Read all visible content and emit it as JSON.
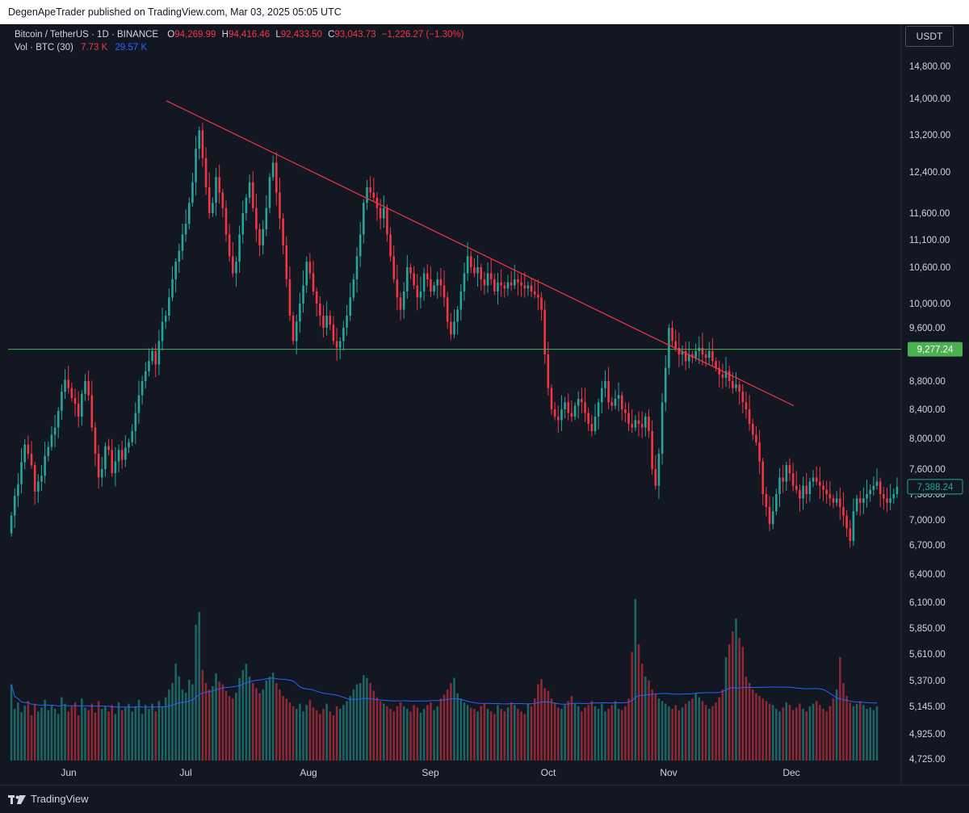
{
  "publish_bar": {
    "text": "DegenApeTrader published on TradingView.com, Mar 03, 2025 05:05 UTC"
  },
  "legend": {
    "symbol": "Bitcoin / TetherUS · 1D · BINANCE",
    "o_label": "O",
    "o_value": "94,269.99",
    "h_label": "H",
    "h_value": "94,416.46",
    "l_label": "L",
    "l_value": "92,433.50",
    "c_label": "C",
    "c_value": "93,043.73",
    "change": "−1,226.27 (−1.30%)",
    "vol_label": "Vol · BTC (30)",
    "vol_value": "7.73 K",
    "vol_ma": "29.57 K"
  },
  "currency_button": "USDT",
  "footer": {
    "brand": "TradingView"
  },
  "colors": {
    "up": "#26a69a",
    "down": "#f23645",
    "hline": "#4caf50",
    "trend": "#f23645",
    "vol_ma": "#2962ff",
    "bg": "#131722"
  },
  "chart_data": {
    "type": "candlestick",
    "price_axis_ticks": [
      "14,800.00",
      "14,000.00",
      "13,200.00",
      "12,400.00",
      "11,600.00",
      "11,100.00",
      "10,600.00",
      "10,000.00",
      "9,600.00",
      "8,800.00",
      "8,400.00",
      "8,000.00",
      "7,600.00",
      "7,300.00",
      "7,000.00",
      "6,700.00",
      "6,400.00",
      "6,100.00",
      "5,850.00",
      "5,610.00",
      "5,370.00",
      "5,145.00",
      "4,925.00",
      "4,725.00"
    ],
    "price_axis_values": [
      14800,
      14000,
      13200,
      12400,
      11600,
      11100,
      10600,
      10000,
      9600,
      8800,
      8400,
      8000,
      7600,
      7300,
      7000,
      6700,
      6400,
      6100,
      5850,
      5610,
      5370,
      5145,
      4925,
      4725
    ],
    "time_axis_labels": [
      "Jun",
      "Jul",
      "Aug",
      "Sep",
      "Oct",
      "Nov",
      "Dec"
    ],
    "horizontal_level": {
      "value": 9277.24,
      "label": "9,277.24"
    },
    "last_price": {
      "value": 7388.24,
      "label": "7,388.24"
    },
    "trendline": {
      "from_value": 13950,
      "to_value": 8450
    },
    "closes": [
      7050,
      7280,
      7420,
      7690,
      7920,
      7800,
      7650,
      7330,
      7450,
      7520,
      7770,
      7890,
      8050,
      8150,
      8380,
      8650,
      8820,
      8700,
      8560,
      8480,
      8300,
      8620,
      8800,
      8600,
      8150,
      7800,
      7500,
      7600,
      7900,
      7850,
      7550,
      7700,
      7850,
      7720,
      7880,
      7950,
      8100,
      8350,
      8600,
      8800,
      8950,
      9100,
      9250,
      9050,
      9400,
      9700,
      9800,
      10100,
      10400,
      10700,
      10900,
      11200,
      11400,
      11800,
      12200,
      12900,
      13300,
      12700,
      12100,
      11600,
      11800,
      12300,
      12000,
      11700,
      11200,
      10800,
      10500,
      10700,
      11200,
      11600,
      11900,
      12200,
      11700,
      11300,
      11000,
      11300,
      11700,
      12300,
      12600,
      12000,
      11500,
      11000,
      10400,
      9800,
      9400,
      9700,
      10000,
      10300,
      10700,
      10500,
      10200,
      10000,
      9800,
      9600,
      9800,
      9650,
      9400,
      9300,
      9400,
      9600,
      9800,
      10100,
      10400,
      10800,
      11200,
      11800,
      12100,
      12000,
      11900,
      11700,
      11500,
      11700,
      11200,
      10800,
      10400,
      10100,
      9900,
      10200,
      10600,
      10500,
      10300,
      10100,
      10200,
      10500,
      10400,
      10200,
      10300,
      10400,
      10300,
      10100,
      9700,
      9500,
      9700,
      9900,
      10200,
      10500,
      10800,
      10600,
      10500,
      10600,
      10400,
      10300,
      10500,
      10400,
      10200,
      10350,
      10300,
      10250,
      10350,
      10300,
      10400,
      10350,
      10300,
      10250,
      10300,
      10200,
      10150,
      10100,
      9900,
      9200,
      8700,
      8400,
      8300,
      8250,
      8400,
      8500,
      8350,
      8300,
      8450,
      8550,
      8500,
      8350,
      8200,
      8100,
      8300,
      8500,
      8700,
      8800,
      8500,
      8450,
      8550,
      8600,
      8400,
      8350,
      8200,
      8150,
      8250,
      8200,
      8150,
      8300,
      8100,
      7600,
      7400,
      7800,
      8500,
      9000,
      9600,
      9400,
      9300,
      9200,
      9250,
      9100,
      9200,
      9150,
      9250,
      9300,
      9200,
      9150,
      9250,
      9100,
      9000,
      8900,
      8850,
      8950,
      8800,
      8700,
      8750,
      8650,
      8500,
      8400,
      8200,
      8050,
      7950,
      7700,
      7300,
      7150,
      6950,
      7100,
      7300,
      7500,
      7450,
      7650,
      7550,
      7400,
      7350,
      7250,
      7400,
      7300,
      7450,
      7500,
      7450,
      7400,
      7350,
      7300,
      7250,
      7200,
      7250,
      7150,
      7050,
      6900,
      6750,
      7100,
      7250,
      7200,
      7250,
      7300,
      7350,
      7400,
      7450,
      7300,
      7250,
      7200,
      7250,
      7300,
      7388
    ],
    "volumes": [
      118,
      80,
      90,
      75,
      85,
      92,
      70,
      88,
      76,
      82,
      94,
      78,
      86,
      80,
      72,
      98,
      88,
      76,
      84,
      90,
      70,
      96,
      82,
      78,
      88,
      74,
      92,
      80,
      84,
      76,
      86,
      72,
      90,
      78,
      82,
      88,
      76,
      84,
      94,
      72,
      86,
      80,
      88,
      76,
      92,
      84,
      98,
      110,
      120,
      150,
      130,
      110,
      105,
      125,
      118,
      210,
      230,
      140,
      120,
      110,
      115,
      135,
      122,
      118,
      108,
      100,
      96,
      105,
      128,
      140,
      150,
      130,
      120,
      112,
      104,
      110,
      124,
      130,
      136,
      120,
      110,
      100,
      96,
      90,
      84,
      80,
      88,
      76,
      86,
      94,
      82,
      78,
      72,
      80,
      88,
      76,
      70,
      84,
      80,
      86,
      92,
      100,
      110,
      118,
      120,
      132,
      128,
      120,
      108,
      98,
      92,
      88,
      84,
      80,
      76,
      84,
      90,
      84,
      80,
      76,
      86,
      82,
      74,
      80,
      86,
      90,
      78,
      84,
      96,
      102,
      110,
      120,
      128,
      104,
      96,
      90,
      86,
      82,
      80,
      76,
      84,
      88,
      80,
      76,
      72,
      86,
      80,
      76,
      82,
      90,
      86,
      80,
      76,
      72,
      88,
      84,
      96,
      118,
      126,
      112,
      108,
      96,
      90,
      82,
      80,
      86,
      92,
      100,
      88,
      84,
      76,
      82,
      86,
      92,
      84,
      80,
      88,
      76,
      80,
      86,
      92,
      80,
      78,
      84,
      96,
      168,
      250,
      180,
      150,
      130,
      124,
      110,
      104,
      96,
      92,
      88,
      84,
      80,
      86,
      78,
      82,
      88,
      92,
      96,
      104,
      98,
      92,
      86,
      80,
      84,
      90,
      98,
      110,
      160,
      180,
      200,
      220,
      190,
      176,
      130,
      120,
      110,
      104,
      100,
      96,
      92,
      88,
      86,
      80,
      76,
      82,
      90,
      86,
      78,
      82,
      88,
      80,
      76,
      84,
      88,
      92,
      86,
      80,
      76,
      84,
      96,
      110,
      160,
      120,
      100,
      90,
      84,
      88,
      92,
      86,
      80,
      82,
      78,
      84
    ],
    "vol_ma": "derived"
  }
}
